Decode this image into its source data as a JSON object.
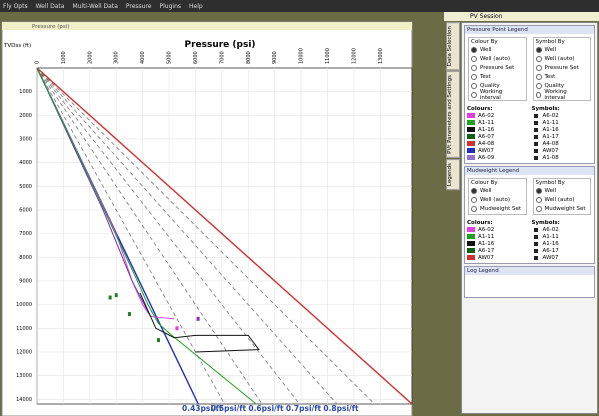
{
  "app": {
    "menu": [
      "Fly Opts",
      "Well Data",
      "Multi-Well Data",
      "Pressure",
      "Plugins",
      "Help"
    ]
  },
  "plot": {
    "window_title": "Pressure (psi)",
    "title": "Pressure (psi)",
    "y_label": "TVDss (ft)",
    "xlim": [
      0,
      14200
    ],
    "ylim": [
      0,
      14200
    ],
    "xticks": [
      0,
      1000,
      2000,
      3000,
      4000,
      5000,
      6000,
      7000,
      8000,
      9000,
      10000,
      11000,
      12000,
      13000
    ],
    "yticks": [
      1000,
      2000,
      3000,
      4000,
      5000,
      6000,
      7000,
      8000,
      9000,
      10000,
      11000,
      12000,
      13000,
      14000
    ],
    "gradients": [
      {
        "value": 0.43,
        "label": "0.43psi/ft",
        "color": "#1f2fbf",
        "dashed": false
      },
      {
        "value": 0.5,
        "label": "0.5psi/ft",
        "color": "#777777",
        "dashed": true
      },
      {
        "value": 0.6,
        "label": "0.6psi/ft",
        "color": "#777777",
        "dashed": true
      },
      {
        "value": 0.7,
        "label": "0.7psi/ft",
        "color": "#777777",
        "dashed": true
      },
      {
        "value": 0.8,
        "label": "0.8psi/ft",
        "color": "#777777",
        "dashed": true
      },
      {
        "value": 0.9,
        "color": "#777777",
        "dashed": true
      },
      {
        "value": 1.0,
        "color": "#d03030",
        "dashed": false
      }
    ],
    "wells": [
      {
        "color": "#e040e0",
        "pressure": [
          0,
          1500,
          3000,
          3600,
          4000,
          4300,
          5200
        ],
        "depth": [
          0,
          3500,
          7000,
          9000,
          10000,
          10500,
          10600
        ]
      },
      {
        "color": "#7030c0",
        "pressure": [
          0,
          2500,
          3600,
          4300
        ],
        "depth": [
          0,
          6000,
          9000,
          10500
        ]
      },
      {
        "color": "#20a020",
        "pressure": [
          0,
          2000,
          3800,
          4200,
          4600,
          5000,
          8300
        ],
        "depth": [
          0,
          4700,
          9000,
          10000,
          10800,
          11200,
          14200
        ]
      },
      {
        "color": "#111111",
        "pressure": [
          3900,
          4500,
          5200,
          6000,
          8000,
          8400,
          6000
        ],
        "depth": [
          9500,
          11000,
          11400,
          11300,
          11300,
          11900,
          12000
        ]
      }
    ],
    "points": [
      {
        "pressure": 2770,
        "depth": 9700,
        "color": "#208020"
      },
      {
        "pressure": 3000,
        "depth": 9600,
        "color": "#208020"
      },
      {
        "pressure": 3500,
        "depth": 10400,
        "color": "#208020"
      },
      {
        "pressure": 4600,
        "depth": 11500,
        "color": "#208020"
      },
      {
        "pressure": 6100,
        "depth": 10600,
        "color": "#8030c0"
      },
      {
        "pressure": 5300,
        "depth": 11000,
        "color": "#e040e0"
      }
    ]
  },
  "session": {
    "title": "PV Session",
    "tabs": [
      "Data Selection",
      "PVt Parameters and Settings",
      "Legends"
    ],
    "legends": [
      {
        "title": "Pressure Point Legend",
        "colour_by": {
          "label": "Colour By",
          "options": [
            "Well",
            "Well (auto)",
            "Pressure Set",
            "Test",
            "Quality",
            "Working interval"
          ]
        },
        "symbol_by": {
          "label": "Symbol By",
          "options": [
            "Well",
            "Well (auto)",
            "Pressure Set",
            "Test",
            "Quality",
            "Working interval"
          ]
        },
        "colours": {
          "label": "Colours:",
          "items": [
            {
              "name": "A6-02",
              "color": "#e040e0"
            },
            {
              "name": "A1-11",
              "color": "#20a020"
            },
            {
              "name": "A1-16",
              "color": "#111111"
            },
            {
              "name": "A6-07",
              "color": "#106010"
            },
            {
              "name": "A4-08",
              "color": "#d03030"
            },
            {
              "name": "AW07",
              "color": "#1f2fbf"
            },
            {
              "name": "A6-09",
              "color": "#9070d0"
            }
          ]
        },
        "symbols": {
          "label": "Symbols:",
          "items": [
            "A6-02",
            "A1-11",
            "A1-16",
            "A1-17",
            "A4-08",
            "AW07",
            "A1-08"
          ]
        }
      },
      {
        "title": "Mudweight Legend",
        "colour_by": {
          "label": "Colour By",
          "options": [
            "Well",
            "Well (auto)",
            "Mudweight Set"
          ]
        },
        "symbol_by": {
          "label": "Symbol By",
          "options": [
            "Well",
            "Well (auto)",
            "Mudweight Set"
          ]
        },
        "colours": {
          "label": "Colours:",
          "items": [
            {
              "name": "A6-02",
              "color": "#e040e0"
            },
            {
              "name": "A1-11",
              "color": "#20a020"
            },
            {
              "name": "A1-16",
              "color": "#111111"
            },
            {
              "name": "A6-17",
              "color": "#106010"
            },
            {
              "name": "AW07",
              "color": "#d03030"
            }
          ]
        },
        "symbols": {
          "label": "Symbols:",
          "items": [
            "A6-02",
            "A1-11",
            "A1-16",
            "A6-17",
            "AW07"
          ]
        }
      }
    ],
    "log_legend": "Log Legend"
  }
}
